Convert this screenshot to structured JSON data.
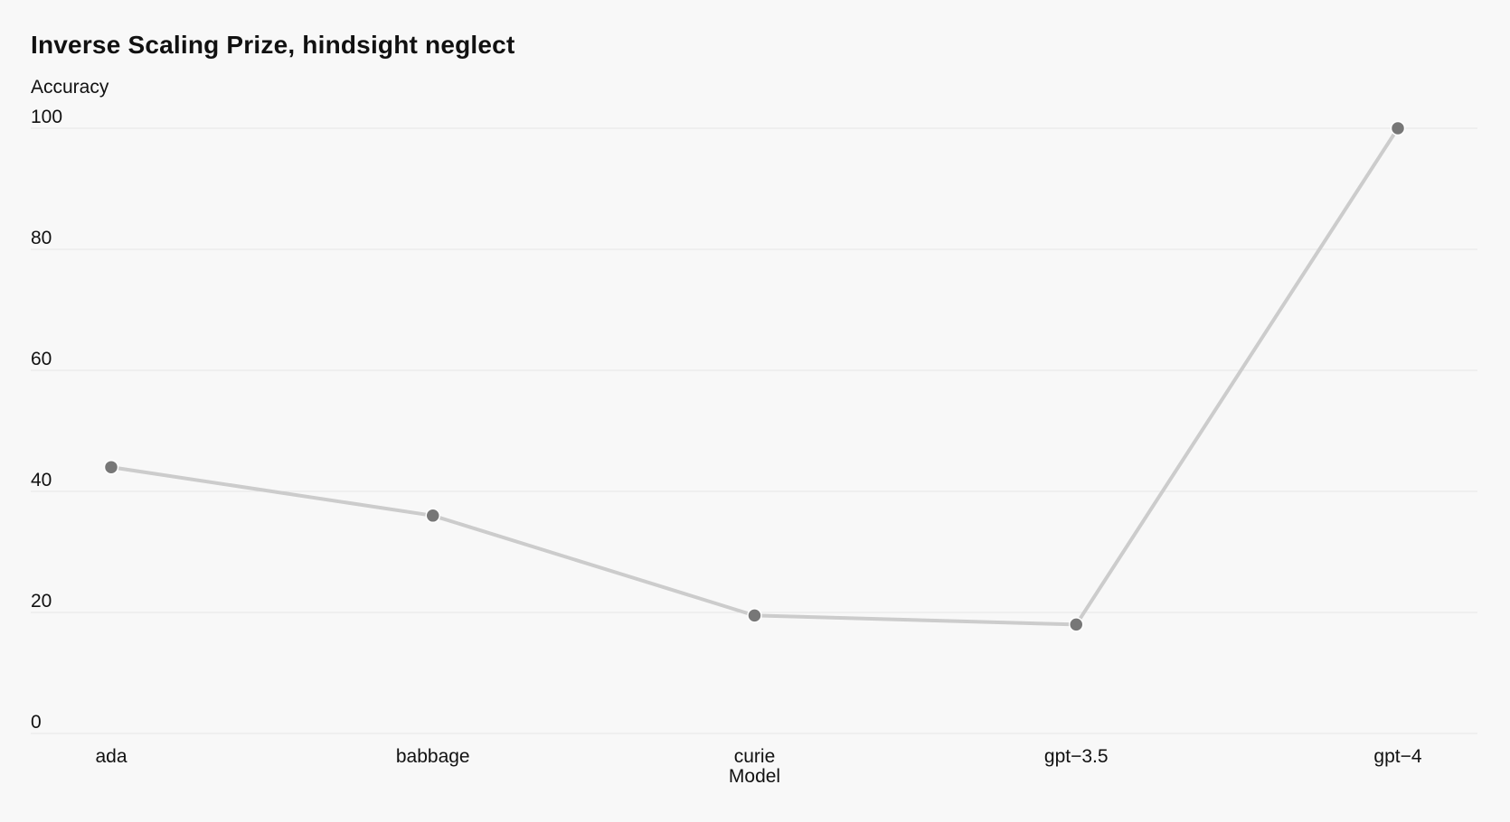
{
  "chart_data": {
    "type": "line",
    "title": "Inverse Scaling Prize, hindsight neglect",
    "xlabel": "Model",
    "ylabel": "Accuracy",
    "categories": [
      "ada",
      "babbage",
      "curie",
      "gpt−3.5",
      "gpt−4"
    ],
    "series": [
      {
        "values": [
          44,
          36,
          19.5,
          18,
          100
        ]
      }
    ],
    "ylim": [
      0,
      100
    ],
    "yticks": [
      0,
      20,
      40,
      60,
      80,
      100
    ],
    "grid": true,
    "legend": "none",
    "colors": {
      "line": "#cccccc",
      "marker": "#777777",
      "marker_stroke": "#ffffff",
      "grid": "#e6e6e6",
      "background": "#f8f8f8"
    }
  }
}
